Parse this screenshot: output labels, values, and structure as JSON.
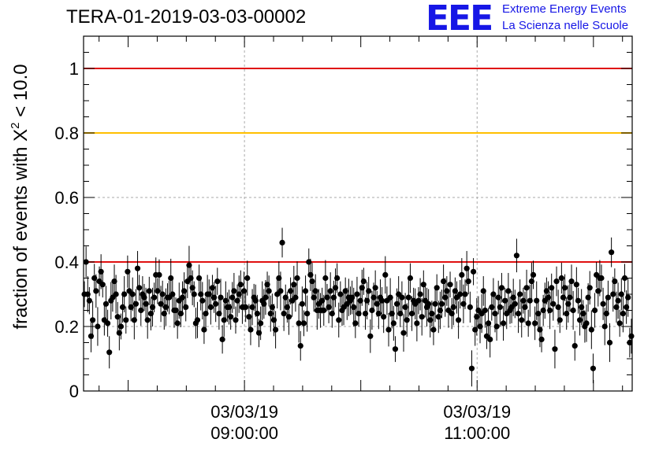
{
  "chart_data": {
    "type": "scatter",
    "title": "TERA-01-2019-03-03-00002",
    "ylabel": "fraction of events with X² < 10.0",
    "ylim": [
      0,
      1.1
    ],
    "xlim": [
      "2019-03-03T07:37:00",
      "2019-03-03T12:20:00"
    ],
    "x_ticks": [
      {
        "date": "03/03/19",
        "time": "09:00:00",
        "at": "2019-03-03T09:00:00"
      },
      {
        "date": "03/03/19",
        "time": "11:00:00",
        "at": "2019-03-03T11:00:00"
      }
    ],
    "y_ticks": [
      "0",
      "0.2",
      "0.4",
      "0.6",
      "0.8",
      "1"
    ],
    "y_tick_values": [
      0,
      0.2,
      0.4,
      0.6,
      0.8,
      1.0
    ],
    "reference_lines": [
      {
        "y": 1.0,
        "color": "#e01010"
      },
      {
        "y": 0.8,
        "color": "#ffbf00"
      },
      {
        "y": 0.4,
        "color": "#e01010"
      }
    ],
    "grid": true,
    "marker_color": "#000000",
    "error_bar": 0.05,
    "series": [
      {
        "values": [
          0.3,
          0.4,
          0.3,
          0.28,
          0.17,
          0.22,
          0.35,
          0.31,
          0.2,
          0.34,
          0.37,
          0.33,
          0.22,
          0.27,
          0.21,
          0.12,
          0.28,
          0.29,
          0.34,
          0.3,
          0.23,
          0.18,
          0.2,
          0.26,
          0.3,
          0.22,
          0.37,
          0.31,
          0.26,
          0.3,
          0.22,
          0.27,
          0.38,
          0.32,
          0.25,
          0.3,
          0.29,
          0.27,
          0.22,
          0.31,
          0.24,
          0.26,
          0.29,
          0.36,
          0.31,
          0.36,
          0.27,
          0.3,
          0.24,
          0.26,
          0.29,
          0.29,
          0.35,
          0.3,
          0.25,
          0.25,
          0.21,
          0.28,
          0.24,
          0.29,
          0.31,
          0.26,
          0.34,
          0.39,
          0.35,
          0.32,
          0.3,
          0.21,
          0.22,
          0.35,
          0.3,
          0.28,
          0.19,
          0.24,
          0.3,
          0.3,
          0.26,
          0.32,
          0.29,
          0.27,
          0.34,
          0.24,
          0.29,
          0.16,
          0.22,
          0.28,
          0.26,
          0.26,
          0.23,
          0.29,
          0.31,
          0.22,
          0.28,
          0.3,
          0.33,
          0.26,
          0.31,
          0.26,
          0.35,
          0.23,
          0.19,
          0.26,
          0.29,
          0.28,
          0.24,
          0.18,
          0.21,
          0.28,
          0.27,
          0.29,
          0.33,
          0.31,
          0.24,
          0.26,
          0.22,
          0.19,
          0.3,
          0.35,
          0.31,
          0.46,
          0.24,
          0.29,
          0.26,
          0.23,
          0.31,
          0.28,
          0.33,
          0.29,
          0.35,
          0.21,
          0.14,
          0.27,
          0.21,
          0.31,
          0.24,
          0.4,
          0.36,
          0.34,
          0.29,
          0.31,
          0.25,
          0.27,
          0.25,
          0.28,
          0.25,
          0.35,
          0.29,
          0.26,
          0.31,
          0.24,
          0.29,
          0.32,
          0.35,
          0.22,
          0.3,
          0.25,
          0.26,
          0.31,
          0.27,
          0.29,
          0.28,
          0.29,
          0.26,
          0.21,
          0.3,
          0.24,
          0.28,
          0.32,
          0.34,
          0.24,
          0.28,
          0.31,
          0.17,
          0.25,
          0.29,
          0.32,
          0.27,
          0.24,
          0.29,
          0.28,
          0.23,
          0.36,
          0.28,
          0.19,
          0.29,
          0.24,
          0.21,
          0.13,
          0.27,
          0.3,
          0.24,
          0.29,
          0.18,
          0.26,
          0.22,
          0.29,
          0.35,
          0.24,
          0.28,
          0.27,
          0.21,
          0.28,
          0.3,
          0.23,
          0.33,
          0.28,
          0.26,
          0.27,
          0.22,
          0.24,
          0.19,
          0.27,
          0.32,
          0.23,
          0.25,
          0.27,
          0.34,
          0.29,
          0.31,
          0.25,
          0.33,
          0.24,
          0.26,
          0.31,
          0.29,
          0.22,
          0.3,
          0.36,
          0.27,
          0.3,
          0.38,
          0.34,
          0.26,
          0.07,
          0.37,
          0.19,
          0.23,
          0.25,
          0.2,
          0.24,
          0.31,
          0.25,
          0.17,
          0.21,
          0.16,
          0.26,
          0.3,
          0.24,
          0.2,
          0.29,
          0.26,
          0.32,
          0.21,
          0.28,
          0.24,
          0.31,
          0.25,
          0.26,
          0.29,
          0.27,
          0.42,
          0.24,
          0.3,
          0.22,
          0.28,
          0.26,
          0.32,
          0.21,
          0.28,
          0.34,
          0.36,
          0.21,
          0.28,
          0.24,
          0.19,
          0.16,
          0.25,
          0.28,
          0.31,
          0.29,
          0.25,
          0.32,
          0.27,
          0.13,
          0.34,
          0.26,
          0.22,
          0.35,
          0.29,
          0.32,
          0.24,
          0.27,
          0.29,
          0.34,
          0.25,
          0.14,
          0.33,
          0.28,
          0.22,
          0.26,
          0.24,
          0.2,
          0.21,
          0.29,
          0.32,
          0.19,
          0.07,
          0.25,
          0.36,
          0.31,
          0.35,
          0.35,
          0.27,
          0.2,
          0.24,
          0.29,
          0.15,
          0.43,
          0.3,
          0.34,
          0.26,
          0.28,
          0.21,
          0.3,
          0.24,
          0.35,
          0.26,
          0.29,
          0.15,
          0.17
        ]
      }
    ]
  },
  "logo": {
    "letters": "EEE",
    "line1": "Extreme Energy Events",
    "line2": "La Scienza nelle Scuole"
  }
}
